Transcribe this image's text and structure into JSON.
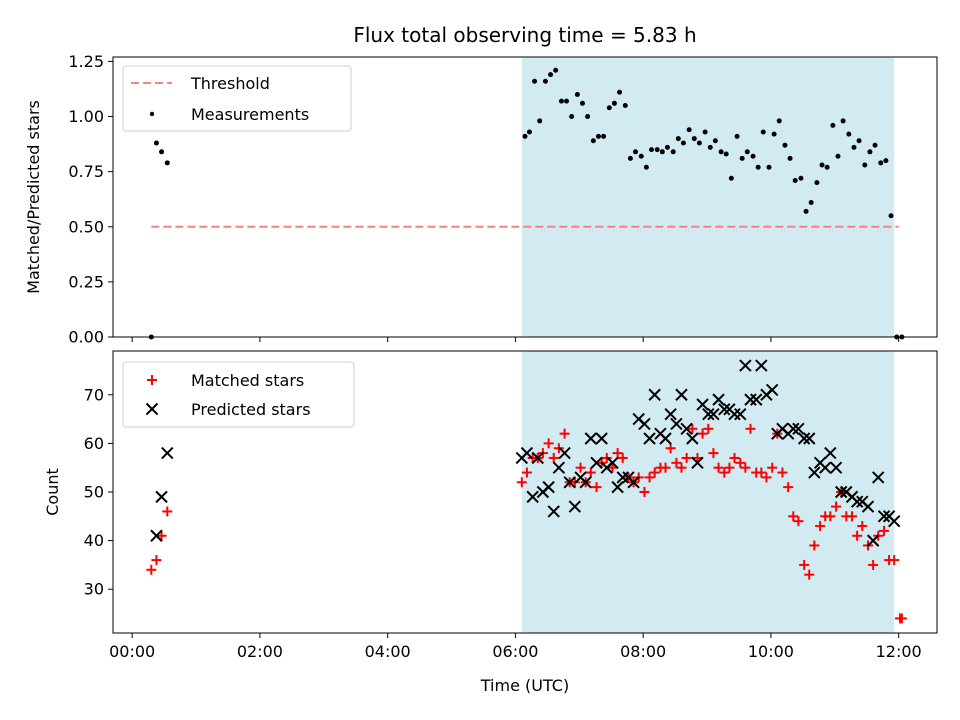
{
  "chart_data": [
    {
      "type": "scatter",
      "title": "Flux total observing time = 5.83 h",
      "xlabel": "",
      "ylabel": "Matched/Predicted stars",
      "xlim": [
        -0.3,
        12.6
      ],
      "ylim": [
        0,
        1.27
      ],
      "yticks": [
        "0.00",
        "0.25",
        "0.50",
        "0.75",
        "1.00",
        "1.25"
      ],
      "legend_position": "top-left",
      "shaded_region": {
        "x_start": 6.1,
        "x_end": 11.93,
        "color": "#add8e6"
      },
      "threshold": {
        "name": "Threshold",
        "y": 0.5,
        "x_start": 0.3,
        "x_end": 12.0,
        "color": "#ff7f7f"
      },
      "series": [
        {
          "name": "Measurements",
          "color": "#000000",
          "x": [
            0.3,
            0.38,
            0.46,
            0.55,
            6.15,
            6.22,
            6.3,
            6.38,
            6.47,
            6.55,
            6.63,
            6.72,
            6.8,
            6.88,
            6.97,
            7.05,
            7.13,
            7.22,
            7.3,
            7.38,
            7.47,
            7.55,
            7.63,
            7.72,
            7.8,
            7.88,
            7.97,
            8.05,
            8.13,
            8.22,
            8.3,
            8.38,
            8.47,
            8.55,
            8.63,
            8.72,
            8.8,
            8.88,
            8.97,
            9.05,
            9.13,
            9.22,
            9.3,
            9.38,
            9.47,
            9.55,
            9.63,
            9.72,
            9.8,
            9.88,
            9.97,
            10.05,
            10.13,
            10.22,
            10.3,
            10.38,
            10.47,
            10.55,
            10.63,
            10.72,
            10.8,
            10.88,
            10.97,
            11.05,
            11.13,
            11.22,
            11.3,
            11.38,
            11.47,
            11.55,
            11.63,
            11.72,
            11.8,
            11.88,
            11.97,
            12.05
          ],
          "y": [
            0.0,
            0.88,
            0.84,
            0.79,
            0.91,
            0.93,
            1.16,
            0.98,
            1.16,
            1.19,
            1.21,
            1.07,
            1.07,
            1.0,
            1.1,
            1.06,
            1.0,
            0.89,
            0.91,
            0.91,
            1.04,
            1.06,
            1.11,
            1.05,
            0.81,
            0.84,
            0.82,
            0.77,
            0.85,
            0.85,
            0.84,
            0.86,
            0.84,
            0.9,
            0.88,
            0.94,
            0.9,
            0.88,
            0.93,
            0.86,
            0.89,
            0.84,
            0.83,
            0.72,
            0.91,
            0.81,
            0.84,
            0.82,
            0.77,
            0.93,
            0.77,
            0.92,
            0.98,
            0.87,
            0.81,
            0.71,
            0.72,
            0.57,
            0.61,
            0.7,
            0.78,
            0.77,
            0.96,
            0.82,
            0.98,
            0.92,
            0.86,
            0.89,
            0.78,
            0.84,
            0.87,
            0.79,
            0.8,
            0.55,
            0.0,
            0.0
          ]
        }
      ]
    },
    {
      "type": "scatter",
      "title": "",
      "xlabel": "Time (UTC)",
      "ylabel": "Count",
      "xlim": [
        -0.3,
        12.6
      ],
      "ylim": [
        21,
        79
      ],
      "yticks": [
        "30",
        "40",
        "50",
        "60",
        "70"
      ],
      "xticks": [
        "00:00",
        "02:00",
        "04:00",
        "06:00",
        "08:00",
        "10:00",
        "12:00"
      ],
      "legend_position": "top-left",
      "shaded_region": {
        "x_start": 6.1,
        "x_end": 11.93,
        "color": "#add8e6"
      },
      "series": [
        {
          "name": "Matched stars",
          "marker": "plus",
          "color": "#ff0000",
          "x": [
            0.3,
            0.38,
            0.46,
            0.55,
            6.1,
            6.18,
            6.27,
            6.35,
            6.43,
            6.52,
            6.6,
            6.68,
            6.77,
            6.85,
            6.93,
            7.02,
            7.1,
            7.18,
            7.27,
            7.35,
            7.43,
            7.52,
            7.6,
            7.68,
            7.77,
            7.85,
            7.93,
            8.02,
            8.1,
            8.18,
            8.27,
            8.35,
            8.43,
            8.52,
            8.6,
            8.68,
            8.77,
            8.85,
            8.93,
            9.02,
            9.1,
            9.18,
            9.27,
            9.35,
            9.43,
            9.52,
            9.6,
            9.68,
            9.77,
            9.85,
            9.93,
            10.02,
            10.1,
            10.18,
            10.27,
            10.35,
            10.43,
            10.52,
            10.6,
            10.68,
            10.77,
            10.85,
            10.93,
            11.02,
            11.1,
            11.18,
            11.27,
            11.35,
            11.43,
            11.52,
            11.6,
            11.68,
            11.77,
            11.85,
            11.93,
            12.02,
            12.05
          ],
          "y": [
            34,
            36,
            41,
            46,
            52,
            54,
            57,
            57,
            58,
            60,
            57,
            59,
            62,
            52,
            52,
            55,
            52,
            54,
            51,
            56,
            57,
            55,
            58,
            57,
            53,
            52,
            53,
            50,
            53,
            54,
            55,
            55,
            59,
            56,
            55,
            57,
            63,
            57,
            62,
            63,
            58,
            55,
            54,
            55,
            57,
            56,
            55,
            63,
            54,
            54,
            53,
            55,
            62,
            54,
            51,
            45,
            44,
            35,
            33,
            39,
            43,
            45,
            45,
            47,
            50,
            45,
            45,
            41,
            43,
            39,
            35,
            41,
            42,
            36,
            36,
            24,
            24
          ]
        },
        {
          "name": "Predicted stars",
          "marker": "x",
          "color": "#000000",
          "x": [
            0.38,
            0.46,
            0.55,
            6.1,
            6.18,
            6.27,
            6.35,
            6.43,
            6.52,
            6.6,
            6.68,
            6.77,
            6.85,
            6.93,
            7.02,
            7.1,
            7.18,
            7.27,
            7.35,
            7.43,
            7.52,
            7.6,
            7.68,
            7.77,
            7.85,
            7.93,
            8.02,
            8.1,
            8.18,
            8.27,
            8.35,
            8.43,
            8.52,
            8.6,
            8.68,
            8.77,
            8.85,
            8.93,
            9.02,
            9.1,
            9.18,
            9.27,
            9.35,
            9.43,
            9.52,
            9.6,
            9.68,
            9.77,
            9.85,
            9.93,
            10.02,
            10.1,
            10.18,
            10.27,
            10.35,
            10.43,
            10.52,
            10.6,
            10.68,
            10.77,
            10.85,
            10.93,
            11.02,
            11.1,
            11.18,
            11.27,
            11.35,
            11.43,
            11.52,
            11.6,
            11.68,
            11.77,
            11.85,
            11.93
          ],
          "y": [
            41,
            49,
            58,
            57,
            58,
            49,
            57,
            50,
            51,
            46,
            55,
            58,
            52,
            47,
            53,
            52,
            61,
            56,
            61,
            55,
            56,
            51,
            53,
            53,
            52,
            65,
            64,
            61,
            70,
            62,
            61,
            66,
            64,
            70,
            63,
            61,
            56,
            68,
            66,
            66,
            69,
            67,
            67,
            66,
            66,
            76,
            69,
            69,
            76,
            70,
            71,
            62,
            63,
            62,
            63,
            63,
            61,
            61,
            54,
            56,
            55,
            58,
            55,
            50,
            50,
            49,
            48,
            48,
            47,
            40,
            53,
            45,
            45,
            44
          ]
        }
      ]
    }
  ]
}
